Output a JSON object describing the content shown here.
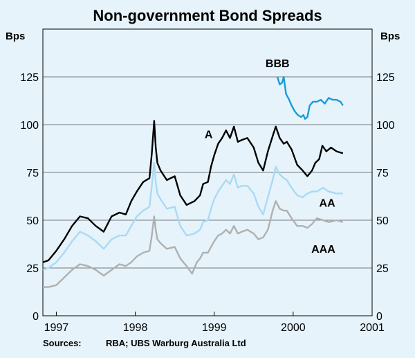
{
  "chart_data": {
    "type": "line",
    "title": "Non-government Bond Spreads",
    "ylabel_left": "Bps",
    "ylabel_right": "Bps",
    "ylim": [
      0,
      150
    ],
    "yticks": [
      0,
      25,
      50,
      75,
      100,
      125
    ],
    "x_range": [
      1996.83,
      2001.0
    ],
    "xticks": [
      {
        "label": "1997",
        "pos": 1997.0
      },
      {
        "label": "1998",
        "pos": 1998.0
      },
      {
        "label": "1999",
        "pos": 1999.0
      },
      {
        "label": "2000",
        "pos": 2000.0
      },
      {
        "label": "2001",
        "pos": 2001.0
      }
    ],
    "sources_label": "Sources:",
    "sources_text": "RBA; UBS Warburg Australia Ltd",
    "series": [
      {
        "name": "BBB",
        "color": "#1a9ad9",
        "points": [
          [
            1999.8,
            125
          ],
          [
            1999.83,
            121
          ],
          [
            1999.86,
            122
          ],
          [
            1999.88,
            125
          ],
          [
            1999.91,
            116
          ],
          [
            1999.95,
            113
          ],
          [
            1999.98,
            110
          ],
          [
            2000.02,
            107
          ],
          [
            2000.06,
            105
          ],
          [
            2000.1,
            104
          ],
          [
            2000.13,
            105
          ],
          [
            2000.15,
            103
          ],
          [
            2000.18,
            104
          ],
          [
            2000.21,
            110
          ],
          [
            2000.25,
            112
          ],
          [
            2000.3,
            112
          ],
          [
            2000.35,
            113
          ],
          [
            2000.4,
            111
          ],
          [
            2000.45,
            114
          ],
          [
            2000.5,
            113
          ],
          [
            2000.55,
            113
          ],
          [
            2000.6,
            112
          ],
          [
            2000.63,
            110
          ]
        ]
      },
      {
        "name": "A",
        "color": "#000000",
        "points": [
          [
            1996.83,
            28
          ],
          [
            1996.9,
            29
          ],
          [
            1997.0,
            34
          ],
          [
            1997.1,
            40
          ],
          [
            1997.2,
            47
          ],
          [
            1997.3,
            52
          ],
          [
            1997.4,
            51
          ],
          [
            1997.5,
            47
          ],
          [
            1997.6,
            44
          ],
          [
            1997.7,
            52
          ],
          [
            1997.8,
            54
          ],
          [
            1997.88,
            53
          ],
          [
            1997.95,
            60
          ],
          [
            1998.02,
            65
          ],
          [
            1998.1,
            70
          ],
          [
            1998.18,
            72
          ],
          [
            1998.21,
            85
          ],
          [
            1998.24,
            102
          ],
          [
            1998.26,
            88
          ],
          [
            1998.28,
            80
          ],
          [
            1998.32,
            76
          ],
          [
            1998.4,
            71
          ],
          [
            1998.5,
            73
          ],
          [
            1998.57,
            63
          ],
          [
            1998.65,
            58
          ],
          [
            1998.75,
            60
          ],
          [
            1998.82,
            63
          ],
          [
            1998.86,
            69
          ],
          [
            1998.92,
            70
          ],
          [
            1998.96,
            78
          ],
          [
            1999.0,
            84
          ],
          [
            1999.05,
            90
          ],
          [
            1999.1,
            93
          ],
          [
            1999.15,
            97
          ],
          [
            1999.2,
            93
          ],
          [
            1999.25,
            99
          ],
          [
            1999.3,
            91
          ],
          [
            1999.35,
            92
          ],
          [
            1999.42,
            93
          ],
          [
            1999.5,
            88
          ],
          [
            1999.56,
            80
          ],
          [
            1999.62,
            76
          ],
          [
            1999.68,
            86
          ],
          [
            1999.74,
            94
          ],
          [
            1999.78,
            99
          ],
          [
            1999.83,
            93
          ],
          [
            1999.88,
            90
          ],
          [
            1999.92,
            91
          ],
          [
            1999.98,
            87
          ],
          [
            2000.05,
            79
          ],
          [
            2000.12,
            76
          ],
          [
            2000.18,
            73
          ],
          [
            2000.24,
            76
          ],
          [
            2000.28,
            80
          ],
          [
            2000.33,
            82
          ],
          [
            2000.37,
            89
          ],
          [
            2000.42,
            86
          ],
          [
            2000.48,
            88
          ],
          [
            2000.55,
            86
          ],
          [
            2000.63,
            85
          ]
        ]
      },
      {
        "name": "AA",
        "color": "#a9daf4",
        "points": [
          [
            1996.83,
            24
          ],
          [
            1996.9,
            25
          ],
          [
            1997.0,
            28
          ],
          [
            1997.1,
            33
          ],
          [
            1997.2,
            39
          ],
          [
            1997.3,
            44
          ],
          [
            1997.4,
            42
          ],
          [
            1997.5,
            39
          ],
          [
            1997.6,
            35
          ],
          [
            1997.7,
            40
          ],
          [
            1997.8,
            42
          ],
          [
            1997.88,
            42
          ],
          [
            1997.95,
            47
          ],
          [
            1998.02,
            52
          ],
          [
            1998.1,
            55
          ],
          [
            1998.18,
            57
          ],
          [
            1998.21,
            68
          ],
          [
            1998.24,
            80
          ],
          [
            1998.26,
            70
          ],
          [
            1998.28,
            64
          ],
          [
            1998.32,
            61
          ],
          [
            1998.4,
            56
          ],
          [
            1998.5,
            57
          ],
          [
            1998.57,
            47
          ],
          [
            1998.65,
            42
          ],
          [
            1998.75,
            43
          ],
          [
            1998.82,
            45
          ],
          [
            1998.86,
            49
          ],
          [
            1998.92,
            50
          ],
          [
            1998.96,
            56
          ],
          [
            1999.0,
            61
          ],
          [
            1999.05,
            65
          ],
          [
            1999.1,
            68
          ],
          [
            1999.15,
            71
          ],
          [
            1999.2,
            69
          ],
          [
            1999.25,
            74
          ],
          [
            1999.3,
            67
          ],
          [
            1999.35,
            68
          ],
          [
            1999.42,
            68
          ],
          [
            1999.5,
            64
          ],
          [
            1999.56,
            57
          ],
          [
            1999.62,
            53
          ],
          [
            1999.68,
            62
          ],
          [
            1999.74,
            71
          ],
          [
            1999.78,
            78
          ],
          [
            1999.83,
            74
          ],
          [
            1999.88,
            72
          ],
          [
            1999.92,
            71
          ],
          [
            1999.98,
            67
          ],
          [
            2000.05,
            63
          ],
          [
            2000.12,
            62
          ],
          [
            2000.18,
            64
          ],
          [
            2000.24,
            65
          ],
          [
            2000.3,
            65
          ],
          [
            2000.38,
            67
          ],
          [
            2000.45,
            65
          ],
          [
            2000.55,
            64
          ],
          [
            2000.63,
            64
          ]
        ]
      },
      {
        "name": "AAA",
        "color": "#b0b0b0",
        "points": [
          [
            1996.83,
            15
          ],
          [
            1996.9,
            15
          ],
          [
            1997.0,
            16
          ],
          [
            1997.1,
            20
          ],
          [
            1997.2,
            24
          ],
          [
            1997.3,
            27
          ],
          [
            1997.4,
            26
          ],
          [
            1997.5,
            24
          ],
          [
            1997.6,
            21
          ],
          [
            1997.7,
            24
          ],
          [
            1997.8,
            27
          ],
          [
            1997.88,
            26
          ],
          [
            1997.95,
            28
          ],
          [
            1998.02,
            31
          ],
          [
            1998.1,
            33
          ],
          [
            1998.18,
            34
          ],
          [
            1998.21,
            42
          ],
          [
            1998.24,
            52
          ],
          [
            1998.26,
            45
          ],
          [
            1998.28,
            40
          ],
          [
            1998.32,
            38
          ],
          [
            1998.4,
            35
          ],
          [
            1998.5,
            36
          ],
          [
            1998.57,
            30
          ],
          [
            1998.65,
            26
          ],
          [
            1998.72,
            22
          ],
          [
            1998.78,
            28
          ],
          [
            1998.82,
            30
          ],
          [
            1998.86,
            33
          ],
          [
            1998.92,
            33
          ],
          [
            1998.96,
            36
          ],
          [
            1999.0,
            39
          ],
          [
            1999.05,
            42
          ],
          [
            1999.1,
            43
          ],
          [
            1999.15,
            45
          ],
          [
            1999.2,
            43
          ],
          [
            1999.25,
            47
          ],
          [
            1999.3,
            43
          ],
          [
            1999.35,
            44
          ],
          [
            1999.42,
            45
          ],
          [
            1999.5,
            43
          ],
          [
            1999.56,
            40
          ],
          [
            1999.62,
            41
          ],
          [
            1999.68,
            45
          ],
          [
            1999.74,
            55
          ],
          [
            1999.78,
            60
          ],
          [
            1999.83,
            56
          ],
          [
            1999.88,
            55
          ],
          [
            1999.92,
            55
          ],
          [
            1999.98,
            51
          ],
          [
            2000.05,
            47
          ],
          [
            2000.12,
            47
          ],
          [
            2000.18,
            46
          ],
          [
            2000.24,
            48
          ],
          [
            2000.3,
            51
          ],
          [
            2000.38,
            50
          ],
          [
            2000.45,
            49
          ],
          [
            2000.55,
            50
          ],
          [
            2000.63,
            49
          ]
        ]
      }
    ]
  }
}
